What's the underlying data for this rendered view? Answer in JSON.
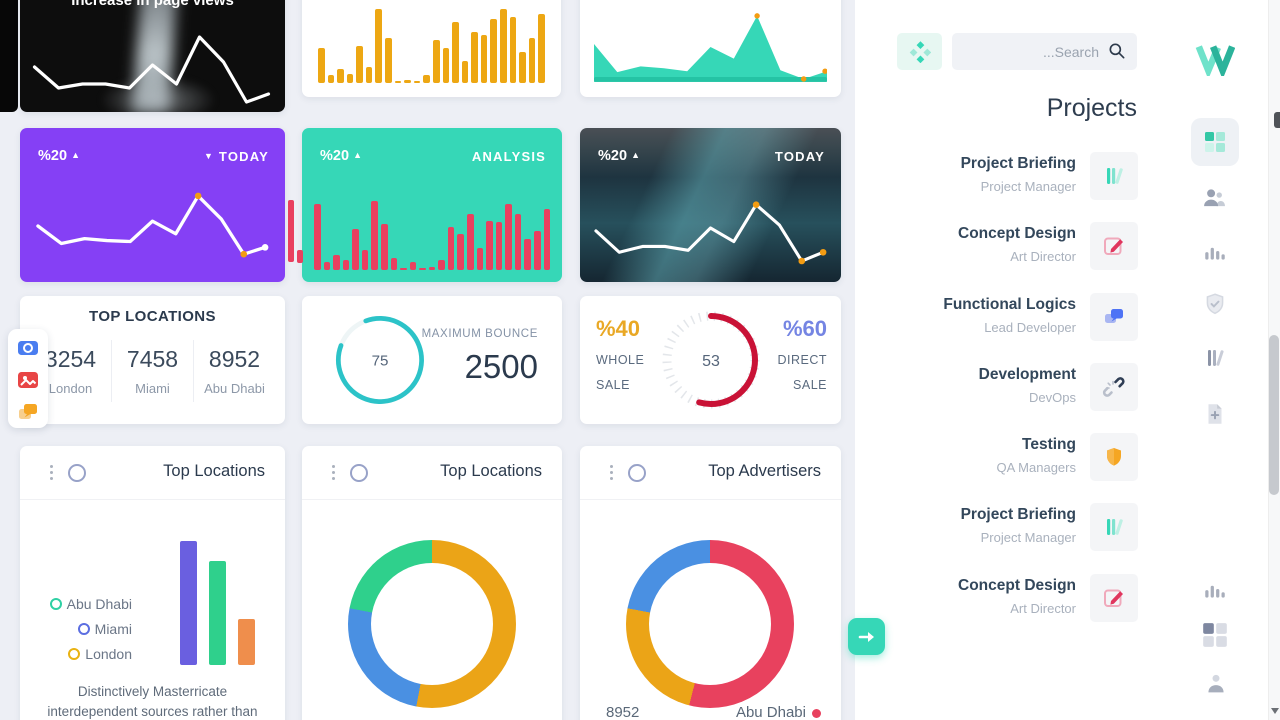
{
  "colors": {
    "accent_teal": "#36d7b7",
    "purple_card": "#8540f5",
    "yellow_bar": "#eda713",
    "red_bar": "#e9405f",
    "crimson_arc": "#c91236",
    "cyan_ring": "#2cc3c8",
    "orange_dot": "#f39c12",
    "whole_sale_amber": "#e9a825",
    "direct_sale_blue": "#7585e3",
    "advertiser_dot_red": "#e8415e"
  },
  "icons": {
    "caret_up": "▲",
    "caret_down": "▼"
  },
  "cards": {
    "page_views": {
      "title": "Increase in page views"
    },
    "purple_today": {
      "percent": "%20",
      "label": "TODAY"
    },
    "analysis": {
      "percent": "%20",
      "label": "ANALYSIS"
    },
    "photo_today": {
      "percent": "%20",
      "label": "TODAY"
    },
    "top_locations_stats": {
      "title": "TOP LOCATIONS",
      "stats": [
        {
          "value": "3254",
          "label": "London"
        },
        {
          "value": "7458",
          "label": "Miami"
        },
        {
          "value": "8952",
          "label": "Abu Dhabi"
        }
      ]
    },
    "max_bounce": {
      "ring_value": "75",
      "label": "MAXIMUM BOUNCE",
      "value": "2500"
    },
    "sales_gauge": {
      "left_percent": "%40",
      "left_line1": "WHOLE",
      "left_line2": "SALE",
      "center_value": "53",
      "right_percent": "%60",
      "right_line1": "DIRECT",
      "right_line2": "SALE"
    },
    "top_locations_bar": {
      "title": "Top Locations",
      "legend": [
        {
          "label": "Abu Dhabi",
          "color": "#2fd0a4"
        },
        {
          "label": "Miami",
          "color": "#5b6ee1"
        },
        {
          "label": "London",
          "color": "#e9b213"
        }
      ],
      "caption_line1": "Distinctively Masterricate",
      "caption_line2": "interdependent sources rather than"
    },
    "top_locations_donut": {
      "title": "Top Locations"
    },
    "top_advertisers": {
      "title": "Top Advertisers",
      "footer_value": "8952",
      "footer_label": "Abu Dhabi"
    }
  },
  "sidebar": {
    "search_placeholder": "...Search",
    "title": "Projects",
    "projects": [
      {
        "name": "Project Briefing",
        "role": "Project Manager",
        "icon": "library-icon"
      },
      {
        "name": "Concept Design",
        "role": "Art Director",
        "icon": "edit-icon"
      },
      {
        "name": "Functional Logics",
        "role": "Lead Developer",
        "icon": "chat-icon"
      },
      {
        "name": "Development",
        "role": "DevOps",
        "icon": "broken-link-icon"
      },
      {
        "name": "Testing",
        "role": "QA Managers",
        "icon": "shield-icon"
      },
      {
        "name": "Project Briefing",
        "role": "Project Manager",
        "icon": "library-icon"
      },
      {
        "name": "Concept Design",
        "role": "Art Director",
        "icon": "edit-icon"
      }
    ]
  },
  "chart_data": [
    {
      "type": "line",
      "card": "page-views",
      "title": "Increase in page views",
      "color": "#ffffff",
      "values": [
        50,
        25,
        30,
        30,
        25,
        52,
        30,
        85,
        55,
        8,
        18
      ]
    },
    {
      "type": "bar",
      "card": "page-views-bars",
      "color": "#eda713",
      "values": [
        45,
        10,
        18,
        12,
        48,
        20,
        95,
        58,
        3,
        4,
        3,
        10,
        55,
        45,
        78,
        28,
        65,
        62,
        82,
        95,
        85,
        40,
        58,
        88
      ]
    },
    {
      "type": "area",
      "card": "visits-area",
      "color": "#36d7b7",
      "values": [
        52,
        15,
        22,
        20,
        17,
        48,
        33,
        88,
        15,
        5,
        16
      ]
    },
    {
      "type": "line",
      "card": "purple-today",
      "color": "#ffffff",
      "values": [
        52,
        30,
        36,
        34,
        33,
        58,
        42,
        88,
        60,
        18,
        26
      ]
    },
    {
      "type": "bar",
      "card": "analysis",
      "color": "#e9405f",
      "values": [
        65,
        8,
        15,
        10,
        40,
        20,
        68,
        45,
        12,
        2,
        8,
        2,
        3,
        10,
        42,
        35,
        55,
        22,
        48,
        47,
        65,
        55,
        30,
        38,
        60
      ]
    },
    {
      "type": "line",
      "card": "photo-today",
      "color": "#ffffff",
      "values": [
        48,
        22,
        30,
        30,
        25,
        52,
        35,
        80,
        55,
        12,
        22
      ]
    },
    {
      "type": "radial",
      "card": "max-bounce",
      "value": 75,
      "color": "#2cc3c8"
    },
    {
      "type": "radial",
      "card": "sales-gauge",
      "value": 53,
      "arc_degrees": 195,
      "color": "#c91236"
    },
    {
      "type": "bar",
      "card": "top-locations-bar",
      "categories": [
        "Miami",
        "Abu Dhabi",
        "London"
      ],
      "values": [
        100,
        84,
        37
      ],
      "colors": [
        "#6a5fe0",
        "#2fd08c",
        "#ef8e4c"
      ]
    },
    {
      "type": "pie",
      "card": "top-locations-donut",
      "segments": [
        {
          "label": "London",
          "value": 53,
          "color": "#eba417"
        },
        {
          "label": "Miami",
          "value": 25,
          "color": "#4a90e2"
        },
        {
          "label": "Abu Dhabi",
          "value": 22,
          "color": "#2fd08c"
        }
      ]
    },
    {
      "type": "pie",
      "card": "top-advertisers-donut",
      "segments": [
        {
          "label": "Abu Dhabi",
          "value": 54,
          "color": "#e8415e"
        },
        {
          "label": "",
          "value": 24,
          "color": "#eba417"
        },
        {
          "label": "",
          "value": 22,
          "color": "#4a90e2"
        }
      ]
    }
  ]
}
